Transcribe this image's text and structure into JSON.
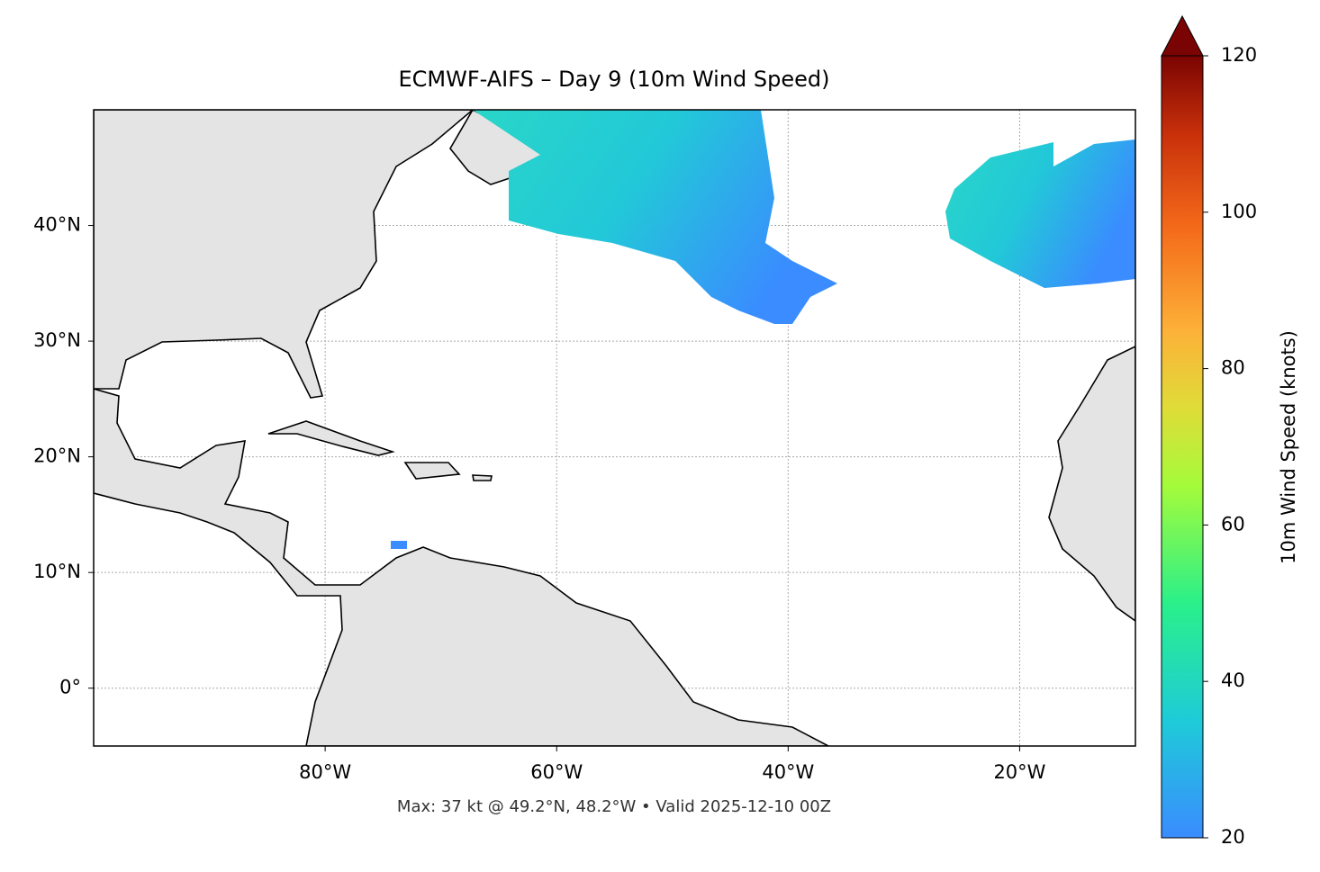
{
  "chart_data": {
    "type": "map",
    "title": "ECMWF-AIFS – Day 9 (10m Wind Speed)",
    "footer": "Max: 37 kt @ 49.2°N, 48.2°W • Valid 2025-12-10 00Z",
    "xlim": [
      -100,
      -10
    ],
    "ylim": [
      -5,
      50
    ],
    "grid": true,
    "xticks": [
      {
        "value": -80,
        "label": "80°W"
      },
      {
        "value": -60,
        "label": "60°W"
      },
      {
        "value": -40,
        "label": "40°W"
      },
      {
        "value": -20,
        "label": "20°W"
      }
    ],
    "yticks": [
      {
        "value": 0,
        "label": "0°"
      },
      {
        "value": 10,
        "label": "10°N"
      },
      {
        "value": 20,
        "label": "20°N"
      },
      {
        "value": 30,
        "label": "30°N"
      },
      {
        "value": 40,
        "label": "40°N"
      }
    ],
    "colorbar": {
      "label": "10m Wind Speed (knots)",
      "lim": [
        20,
        120
      ],
      "ticks": [
        20,
        40,
        60,
        80,
        100,
        120
      ]
    }
  }
}
